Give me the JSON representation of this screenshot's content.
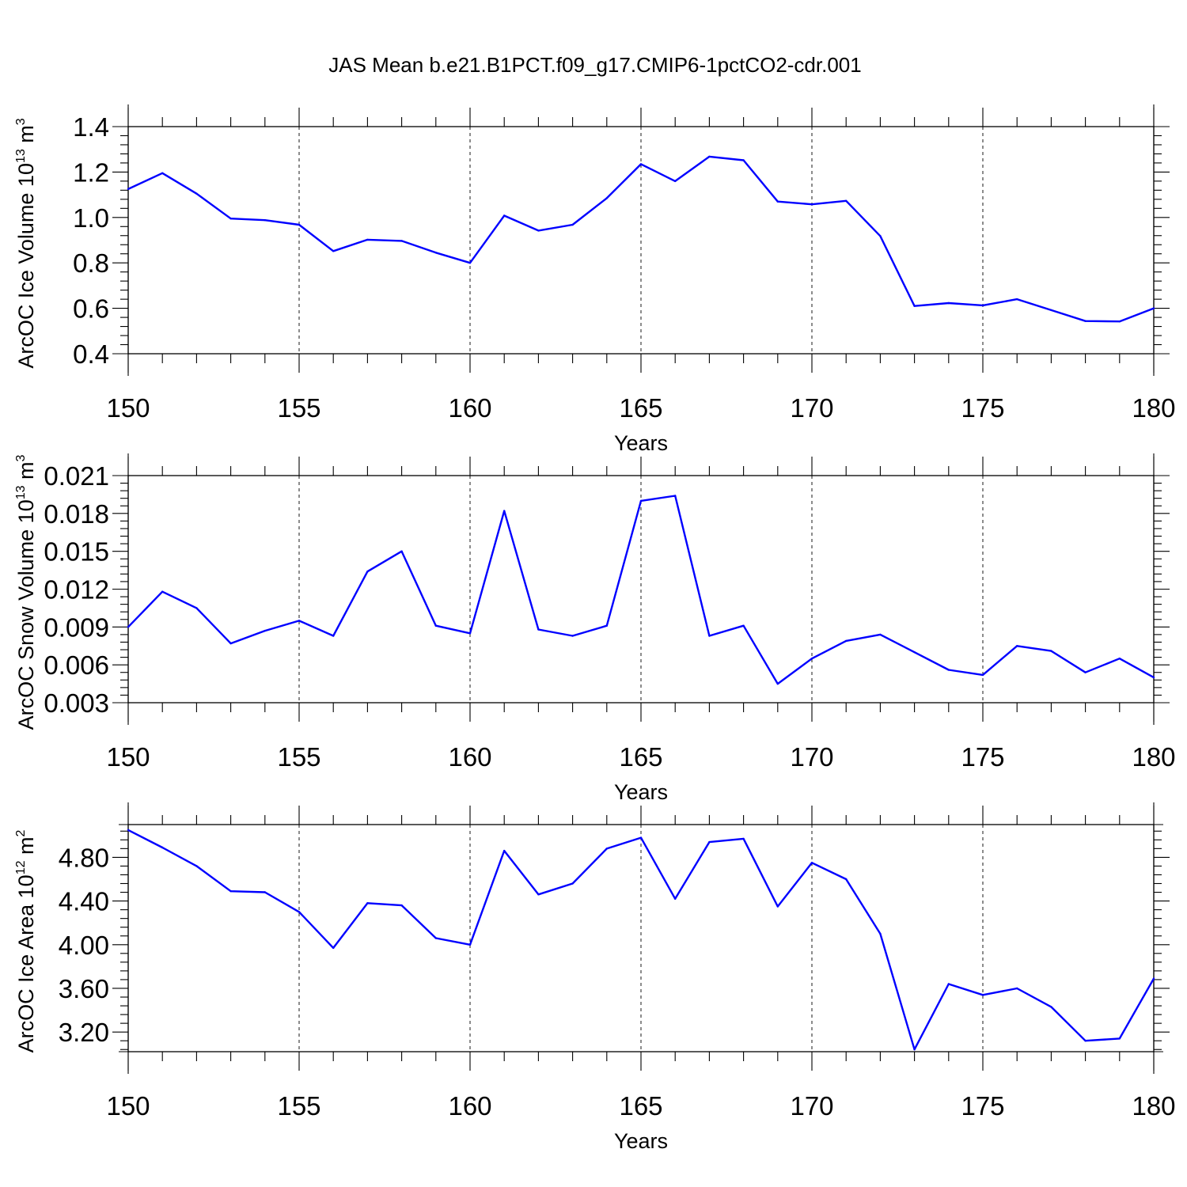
{
  "title": "JAS Mean b.e21.B1PCT.f09_g17.CMIP6-1pctCO2-cdr.001",
  "colors": {
    "series": "#0000ff",
    "axes": "#000000",
    "background": "#ffffff"
  },
  "chart_data": [
    {
      "type": "line",
      "ylabel": {
        "main": "ArcOC Ice Volume 10",
        "exp": "13",
        "unit": " m",
        "unit_exp": "3"
      },
      "xlabel": "Years",
      "xlim": [
        150,
        180
      ],
      "ylim": [
        0.4,
        1.4
      ],
      "x_ticks": [
        150,
        155,
        160,
        165,
        170,
        175,
        180
      ],
      "x_tick_labels": [
        "150",
        "155",
        "160",
        "165",
        "170",
        "175",
        "180"
      ],
      "y_ticks": [
        0.4,
        0.6,
        0.8,
        1.0,
        1.2,
        1.4
      ],
      "y_tick_labels": [
        "0.4",
        "0.6",
        "0.8",
        "1.0",
        "1.2",
        "1.4"
      ],
      "x_grid": true,
      "x": [
        150,
        151,
        152,
        153,
        154,
        155,
        156,
        157,
        158,
        159,
        160,
        161,
        162,
        163,
        164,
        165,
        166,
        167,
        168,
        169,
        170,
        171,
        172,
        173,
        174,
        175,
        176,
        177,
        178,
        179,
        180
      ],
      "values": [
        1.125,
        1.195,
        1.105,
        0.995,
        0.988,
        0.968,
        0.852,
        0.902,
        0.897,
        0.845,
        0.8,
        1.008,
        0.942,
        0.968,
        1.085,
        1.235,
        1.16,
        1.268,
        1.252,
        1.07,
        1.058,
        1.073,
        0.918,
        0.61,
        0.623,
        0.613,
        0.64,
        0.592,
        0.544,
        0.542,
        0.6
      ]
    },
    {
      "type": "line",
      "ylabel": {
        "main": "ArcOC Snow Volume 10",
        "exp": "13",
        "unit": " m",
        "unit_exp": "3"
      },
      "xlabel": "Years",
      "xlim": [
        150,
        180
      ],
      "ylim": [
        0.003,
        0.021
      ],
      "x_ticks": [
        150,
        155,
        160,
        165,
        170,
        175,
        180
      ],
      "x_tick_labels": [
        "150",
        "155",
        "160",
        "165",
        "170",
        "175",
        "180"
      ],
      "y_ticks": [
        0.003,
        0.006,
        0.009,
        0.012,
        0.015,
        0.018,
        0.021
      ],
      "y_tick_labels": [
        "0.003",
        "0.006",
        "0.009",
        "0.012",
        "0.015",
        "0.018",
        "0.021"
      ],
      "x_grid": true,
      "x": [
        150,
        151,
        152,
        153,
        154,
        155,
        156,
        157,
        158,
        159,
        160,
        161,
        162,
        163,
        164,
        165,
        166,
        167,
        168,
        169,
        170,
        171,
        172,
        173,
        174,
        175,
        176,
        177,
        178,
        179,
        180
      ],
      "values": [
        0.009,
        0.0118,
        0.0105,
        0.0077,
        0.0087,
        0.0095,
        0.0083,
        0.0134,
        0.015,
        0.0091,
        0.0085,
        0.0182,
        0.0088,
        0.0083,
        0.0091,
        0.019,
        0.0194,
        0.0083,
        0.0091,
        0.0045,
        0.0065,
        0.0079,
        0.0084,
        0.007,
        0.0056,
        0.0052,
        0.0075,
        0.0071,
        0.0054,
        0.0065,
        0.005
      ]
    },
    {
      "type": "line",
      "ylabel": {
        "main": "ArcOC Ice Area 10",
        "exp": "12",
        "unit": " m",
        "unit_exp": "2"
      },
      "xlabel": "Years",
      "xlim": [
        150,
        180
      ],
      "ylim": [
        3.02,
        5.1
      ],
      "x_ticks": [
        150,
        155,
        160,
        165,
        170,
        175,
        180
      ],
      "x_tick_labels": [
        "150",
        "155",
        "160",
        "165",
        "170",
        "175",
        "180"
      ],
      "y_ticks": [
        3.2,
        3.6,
        4.0,
        4.4,
        4.8
      ],
      "y_tick_labels": [
        "3.20",
        "3.60",
        "4.00",
        "4.40",
        "4.80"
      ],
      "x_grid": true,
      "x": [
        150,
        151,
        152,
        153,
        154,
        155,
        156,
        157,
        158,
        159,
        160,
        161,
        162,
        163,
        164,
        165,
        166,
        167,
        168,
        169,
        170,
        171,
        172,
        173,
        174,
        175,
        176,
        177,
        178,
        179,
        180
      ],
      "values": [
        5.05,
        4.89,
        4.72,
        4.49,
        4.48,
        4.3,
        3.97,
        4.38,
        4.36,
        4.06,
        4.0,
        4.86,
        4.46,
        4.56,
        4.88,
        4.98,
        4.42,
        4.94,
        4.97,
        4.35,
        4.75,
        4.6,
        4.1,
        3.04,
        3.64,
        3.54,
        3.6,
        3.43,
        3.12,
        3.14,
        3.69
      ]
    }
  ]
}
